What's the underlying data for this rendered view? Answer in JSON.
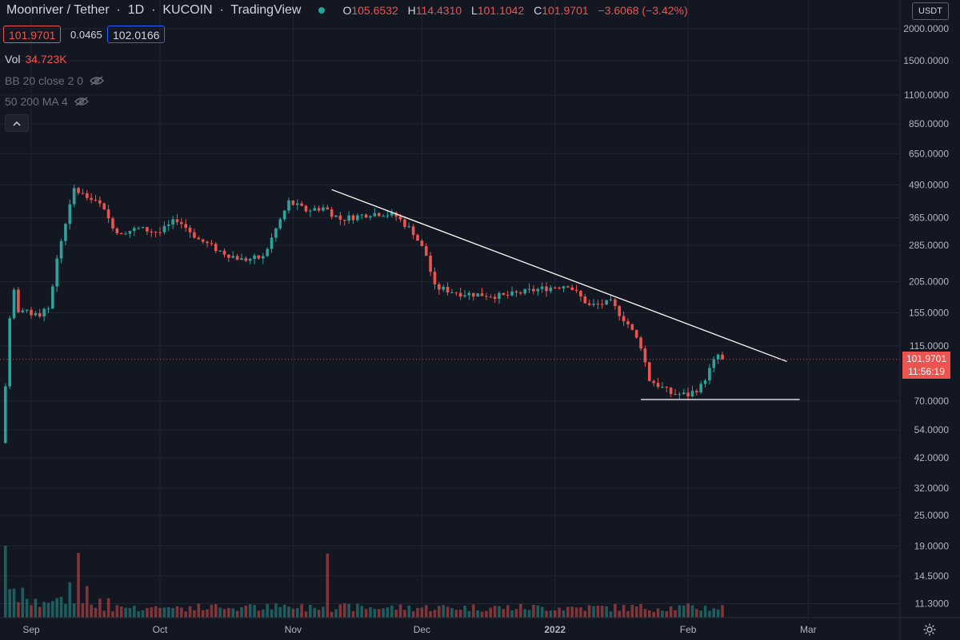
{
  "header": {
    "symbol": "Moonriver / Tether",
    "interval": "1D",
    "exchange": "KUCOIN",
    "platform": "TradingView",
    "ohlc": {
      "o_label": "O",
      "o": "105.6532",
      "h_label": "H",
      "h": "114.4310",
      "l_label": "L",
      "l": "101.1042",
      "c_label": "C",
      "c": "101.9701",
      "change": "−3.6068 (−3.42%)"
    }
  },
  "quote": {
    "sell": "101.9701",
    "spread": "0.0465",
    "buy": "102.0166"
  },
  "volume": {
    "label": "Vol",
    "value": "34.723K"
  },
  "indicators": [
    {
      "label": "BB 20 close 2 0"
    },
    {
      "label": "50 200 MA 4"
    }
  ],
  "currency_label": "USDT",
  "price_badge": {
    "price": "101.9701",
    "countdown": "11:56:19"
  },
  "colors": {
    "up": "#26a69a",
    "down": "#ef5350",
    "background": "#131722",
    "grid": "#232632"
  },
  "icons": {
    "live": "live-dot-icon",
    "hidden": "eye-hidden-icon",
    "collapse": "chevron-up-icon",
    "settings": "gear-icon"
  },
  "chart_data": {
    "type": "candlestick",
    "y_scale": "log",
    "y_ticks": [
      "2000.0000",
      "1500.0000",
      "1100.0000",
      "850.0000",
      "650.0000",
      "490.0000",
      "365.0000",
      "285.0000",
      "205.0000",
      "155.0000",
      "115.0000",
      "70.0000",
      "54.0000",
      "42.0000",
      "32.0000",
      "25.0000",
      "19.0000",
      "14.5000",
      "11.3000"
    ],
    "x_ticks": [
      "Sep",
      "Oct",
      "Nov",
      "Dec",
      "2022",
      "Feb",
      "Mar"
    ],
    "x_tick_dates": [
      "2021-09-01",
      "2021-10-01",
      "2021-11-01",
      "2021-12-01",
      "2022-01-01",
      "2022-02-01",
      "2022-03-01"
    ],
    "candles_range": [
      "2021-08-26",
      "2022-02-09"
    ],
    "anchors": [
      {
        "date": "2021-08-26",
        "close": 80
      },
      {
        "date": "2021-08-27",
        "close": 150
      },
      {
        "date": "2021-08-28",
        "close": 190
      },
      {
        "date": "2021-08-29",
        "close": 160
      },
      {
        "date": "2021-09-02",
        "close": 150
      },
      {
        "date": "2021-09-05",
        "close": 160
      },
      {
        "date": "2021-09-07",
        "close": 250
      },
      {
        "date": "2021-09-09",
        "close": 350
      },
      {
        "date": "2021-09-11",
        "close": 470
      },
      {
        "date": "2021-09-13",
        "close": 450
      },
      {
        "date": "2021-09-17",
        "close": 410
      },
      {
        "date": "2021-09-21",
        "close": 320
      },
      {
        "date": "2021-09-26",
        "close": 330
      },
      {
        "date": "2021-10-01",
        "close": 320
      },
      {
        "date": "2021-10-05",
        "close": 360
      },
      {
        "date": "2021-10-10",
        "close": 300
      },
      {
        "date": "2021-10-15",
        "close": 270
      },
      {
        "date": "2021-10-20",
        "close": 250
      },
      {
        "date": "2021-10-25",
        "close": 255
      },
      {
        "date": "2021-10-28",
        "close": 330
      },
      {
        "date": "2021-10-31",
        "close": 420
      },
      {
        "date": "2021-11-04",
        "close": 390
      },
      {
        "date": "2021-11-08",
        "close": 400
      },
      {
        "date": "2021-11-12",
        "close": 360
      },
      {
        "date": "2021-11-16",
        "close": 370
      },
      {
        "date": "2021-11-19",
        "close": 380
      },
      {
        "date": "2021-11-22",
        "close": 380
      },
      {
        "date": "2021-11-25",
        "close": 370
      },
      {
        "date": "2021-11-29",
        "close": 320
      },
      {
        "date": "2021-12-02",
        "close": 260
      },
      {
        "date": "2021-12-04",
        "close": 195
      },
      {
        "date": "2021-12-10",
        "close": 185
      },
      {
        "date": "2021-12-20",
        "close": 180
      },
      {
        "date": "2021-12-27",
        "close": 190
      },
      {
        "date": "2022-01-04",
        "close": 200
      },
      {
        "date": "2022-01-09",
        "close": 165
      },
      {
        "date": "2022-01-14",
        "close": 170
      },
      {
        "date": "2022-01-18",
        "close": 140
      },
      {
        "date": "2022-01-21",
        "close": 115
      },
      {
        "date": "2022-01-23",
        "close": 85
      },
      {
        "date": "2022-01-28",
        "close": 75
      },
      {
        "date": "2022-02-01",
        "close": 74
      },
      {
        "date": "2022-02-04",
        "close": 80
      },
      {
        "date": "2022-02-07",
        "close": 100
      },
      {
        "date": "2022-02-08",
        "close": 106
      },
      {
        "date": "2022-02-09",
        "close": 102
      }
    ],
    "trendlines": [
      {
        "from": {
          "date": "2021-11-10",
          "price": 470
        },
        "to": {
          "date": "2022-02-24",
          "price": 100
        }
      },
      {
        "from": {
          "date": "2022-01-21",
          "price": 71
        },
        "to": {
          "date": "2022-02-27",
          "price": 71
        }
      }
    ],
    "last_price": 101.9701,
    "volume_peaks": [
      {
        "date": "2021-08-26",
        "value": 1.0
      },
      {
        "date": "2021-09-12",
        "value": 0.9
      },
      {
        "date": "2021-11-09",
        "value": 0.89
      }
    ]
  }
}
